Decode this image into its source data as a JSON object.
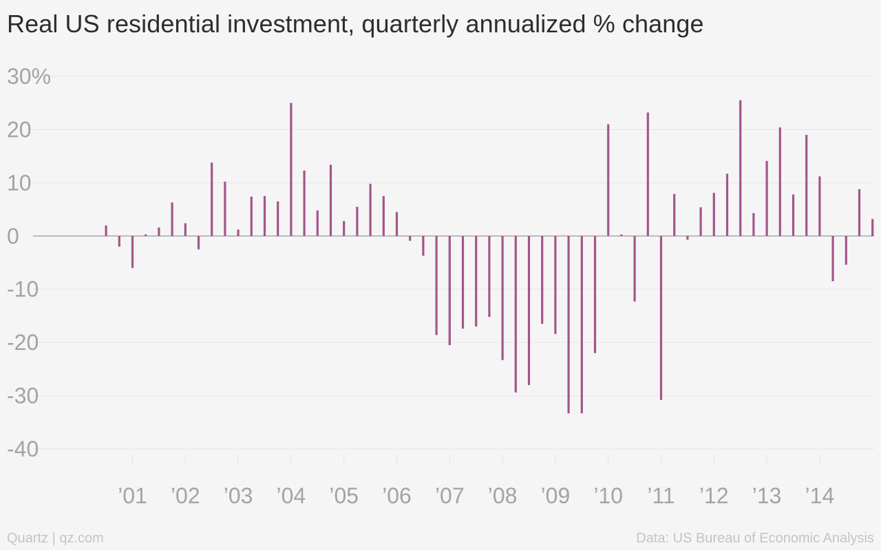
{
  "header": {
    "title": "Real US residential investment, quarterly annualized % change"
  },
  "footer": {
    "source_left": "Quartz | qz.com",
    "source_right": "Data: US Bureau of Economic Analysis"
  },
  "colors": {
    "bar": "#a3558b",
    "grid": "#e4e4e4",
    "axis": "#9a9a9a",
    "tick_text": "#a3a3a3"
  },
  "chart_data": {
    "type": "bar",
    "title": "Real US residential investment, quarterly annualized % change",
    "xlabel": "",
    "ylabel": "",
    "ylim": [
      -40,
      30
    ],
    "y_ticks": [
      {
        "value": 30,
        "label": "30%"
      },
      {
        "value": 20,
        "label": "20"
      },
      {
        "value": 10,
        "label": "10"
      },
      {
        "value": 0,
        "label": "0"
      },
      {
        "value": -10,
        "label": "-10"
      },
      {
        "value": -20,
        "label": "-20"
      },
      {
        "value": -30,
        "label": "-30"
      },
      {
        "value": -40,
        "label": "-40"
      }
    ],
    "x_ticks": [
      {
        "year": 2001,
        "label": "’01"
      },
      {
        "year": 2002,
        "label": "’02"
      },
      {
        "year": 2003,
        "label": "’03"
      },
      {
        "year": 2004,
        "label": "’04"
      },
      {
        "year": 2005,
        "label": "’05"
      },
      {
        "year": 2006,
        "label": "’06"
      },
      {
        "year": 2007,
        "label": "’07"
      },
      {
        "year": 2008,
        "label": "’08"
      },
      {
        "year": 2009,
        "label": "’09"
      },
      {
        "year": 2010,
        "label": "’10"
      },
      {
        "year": 2011,
        "label": "’11"
      },
      {
        "year": 2012,
        "label": "’12"
      },
      {
        "year": 2013,
        "label": "’13"
      },
      {
        "year": 2014,
        "label": "’14"
      }
    ],
    "grid": true,
    "start": "2000 Q1",
    "frequency": "quarterly",
    "values": [
      2.0,
      -2.0,
      -6.0,
      0.3,
      1.6,
      6.3,
      2.4,
      -2.5,
      13.8,
      10.2,
      1.2,
      7.4,
      7.5,
      6.5,
      25.0,
      12.3,
      4.8,
      13.4,
      2.8,
      5.5,
      9.8,
      7.5,
      4.5,
      -0.9,
      -3.7,
      -18.6,
      -20.5,
      -17.4,
      -17.0,
      -15.2,
      -23.3,
      -29.4,
      -28.0,
      -16.5,
      -18.4,
      -33.3,
      -33.3,
      -22.0,
      21.0,
      0.3,
      -12.3,
      23.2,
      -30.8,
      7.9,
      -0.7,
      5.4,
      8.1,
      11.7,
      25.5,
      4.3,
      14.1,
      20.4,
      7.8,
      19.0,
      11.2,
      -8.5,
      -5.4,
      8.8,
      3.2
    ]
  }
}
